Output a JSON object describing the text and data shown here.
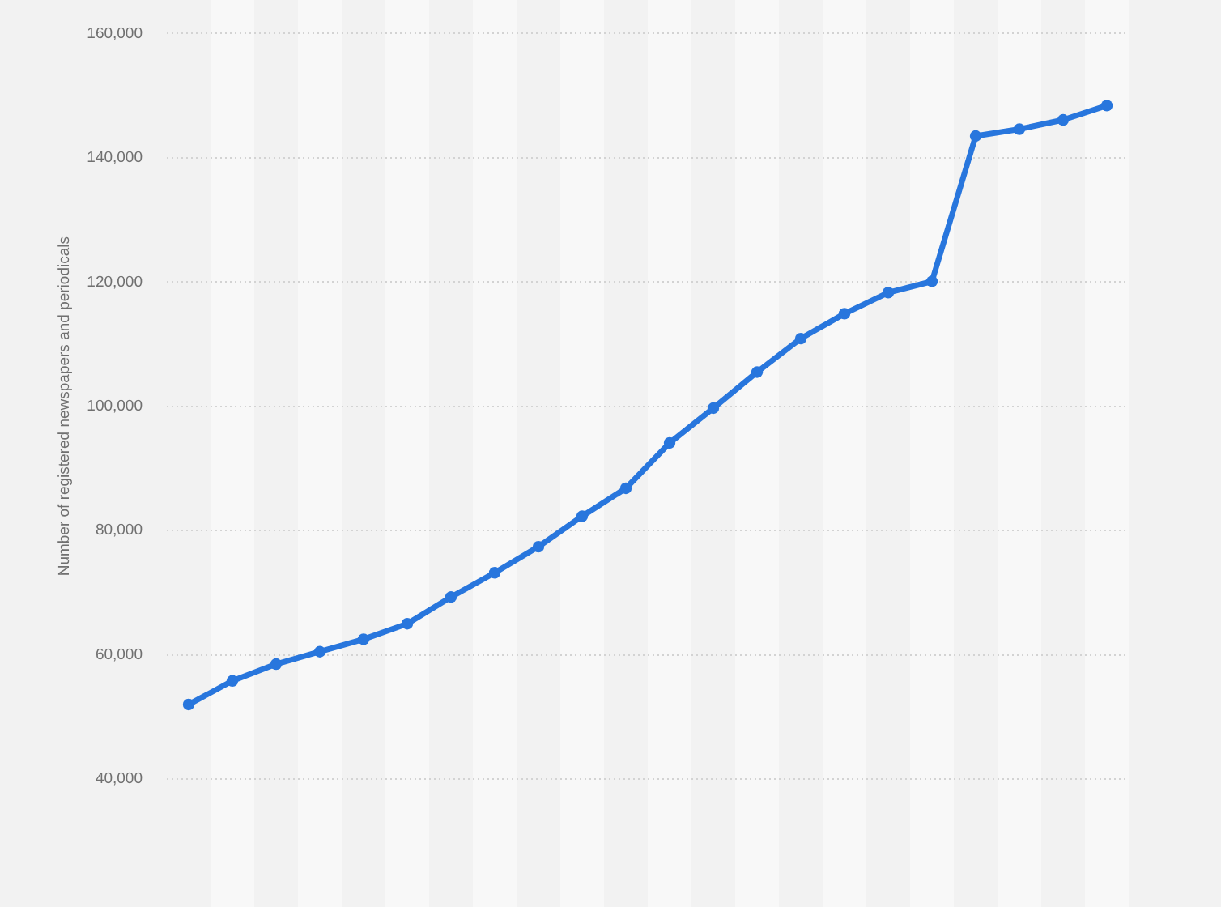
{
  "chart_data": {
    "type": "line",
    "ylabel": "Number of registered newspapers and periodicals",
    "categories": [
      null,
      null,
      null,
      null,
      null,
      null,
      null,
      null,
      null,
      null,
      null,
      null,
      null,
      null,
      null,
      null,
      null,
      null,
      null,
      null,
      null,
      null
    ],
    "values": [
      52000,
      55800,
      58500,
      60500,
      62500,
      65000,
      69300,
      73200,
      77400,
      82300,
      86800,
      94100,
      99700,
      105500,
      110900,
      114900,
      118300,
      120100,
      143500,
      144600,
      146100,
      148400
    ],
    "color": "#2876dd",
    "ylim": [
      40000,
      160000
    ],
    "yticks": [
      {
        "value": 40000,
        "label": "40,000"
      },
      {
        "value": 60000,
        "label": "60,000"
      },
      {
        "value": 80000,
        "label": "80,000"
      },
      {
        "value": 100000,
        "label": "100,000"
      },
      {
        "value": 120000,
        "label": "120,000"
      },
      {
        "value": 140000,
        "label": "140,000"
      },
      {
        "value": 160000,
        "label": "160,000"
      }
    ],
    "grid": "y",
    "marker": "circle",
    "line_style": "solid",
    "tick_labels": "y"
  }
}
